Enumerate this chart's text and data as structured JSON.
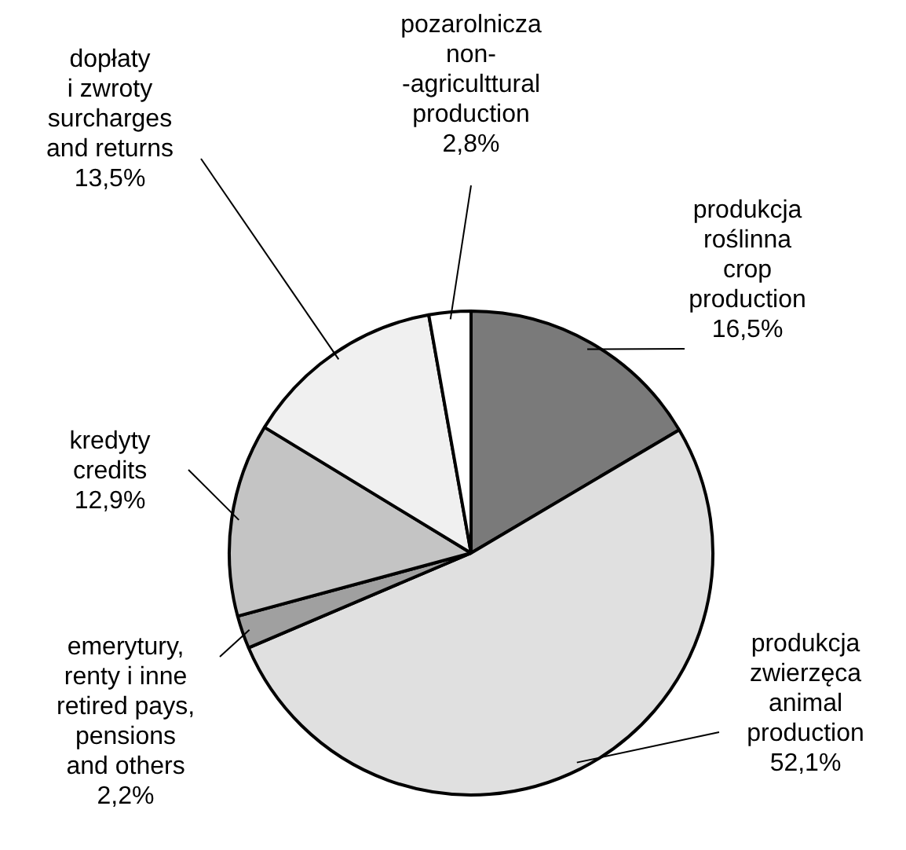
{
  "chart_data": {
    "type": "pie",
    "categories": [
      "produkcja\nroślinna\ncrop\nproduction",
      "produkcja\nzwierzęca\nanimal\nproduction",
      "emerytury,\nrenty i inne\nretired pays,\npensions\nand others",
      "kredyty\ncredits",
      "dopłaty\ni zwroty\nsurcharges\nand returns",
      "pozarolnicza\nnon-\n-agriculttural\nproduction"
    ],
    "values": [
      16.5,
      52.1,
      2.2,
      12.9,
      13.5,
      2.8
    ],
    "value_labels": [
      "16,5%",
      "52,1%",
      "2,2%",
      "12,9%",
      "13,5%",
      "2,8%"
    ],
    "colors": [
      "#7a7a7a",
      "#e0e0e0",
      "#a0a0a0",
      "#c4c4c4",
      "#f0f0f0",
      "#ffffff"
    ],
    "legend": false
  }
}
